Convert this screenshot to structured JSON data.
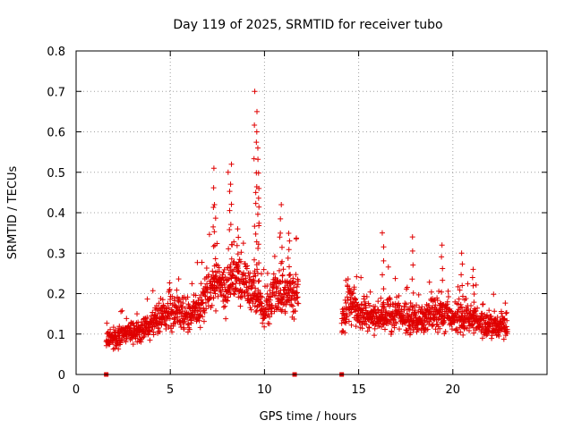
{
  "chart_data": {
    "type": "scatter",
    "title": "Day 119 of 2025, SRMTID for receiver tubo",
    "xlabel": "GPS time / hours",
    "ylabel": "SRMTID / TECUs",
    "xlim": [
      0,
      25
    ],
    "ylim": [
      0,
      0.8
    ],
    "x_ticks": [
      0,
      5,
      10,
      15,
      20
    ],
    "y_ticks": [
      0,
      0.1,
      0.2,
      0.3,
      0.4,
      0.5,
      0.6,
      0.7,
      0.8
    ],
    "grid": true,
    "marker": "plus",
    "color": "#e00000",
    "gap_markers_x": [
      1.6,
      11.6,
      14.1
    ],
    "series": [
      {
        "name": "SRMTID",
        "trend": [
          [
            1.6,
            0.08
          ],
          [
            2.5,
            0.1
          ],
          [
            3.5,
            0.11
          ],
          [
            4.5,
            0.14
          ],
          [
            5.3,
            0.16
          ],
          [
            6,
            0.14
          ],
          [
            6.8,
            0.18
          ],
          [
            7.3,
            0.22
          ],
          [
            8,
            0.21
          ],
          [
            8.5,
            0.24
          ],
          [
            9,
            0.22
          ],
          [
            9.5,
            0.2
          ],
          [
            10,
            0.16
          ],
          [
            10.8,
            0.21
          ],
          [
            11.5,
            0.2
          ],
          [
            11.8,
            0.2
          ],
          [
            14.1,
            0.12
          ],
          [
            14.5,
            0.19
          ],
          [
            15,
            0.15
          ],
          [
            16,
            0.14
          ],
          [
            17,
            0.15
          ],
          [
            18,
            0.13
          ],
          [
            19,
            0.15
          ],
          [
            20,
            0.14
          ],
          [
            21,
            0.14
          ],
          [
            22,
            0.12
          ],
          [
            22.9,
            0.12
          ]
        ],
        "peaks": [
          [
            7.3,
            0.51
          ],
          [
            7.35,
            0.42
          ],
          [
            8.1,
            0.5
          ],
          [
            8.2,
            0.52
          ],
          [
            8.6,
            0.36
          ],
          [
            9.5,
            0.7
          ],
          [
            9.55,
            0.65
          ],
          [
            9.6,
            0.6
          ],
          [
            9.65,
            0.56
          ],
          [
            9.7,
            0.46
          ],
          [
            10.9,
            0.42
          ],
          [
            11.3,
            0.33
          ],
          [
            16.3,
            0.35
          ],
          [
            17.9,
            0.34
          ],
          [
            19.4,
            0.32
          ],
          [
            20.5,
            0.3
          ],
          [
            21.1,
            0.26
          ]
        ]
      }
    ]
  }
}
